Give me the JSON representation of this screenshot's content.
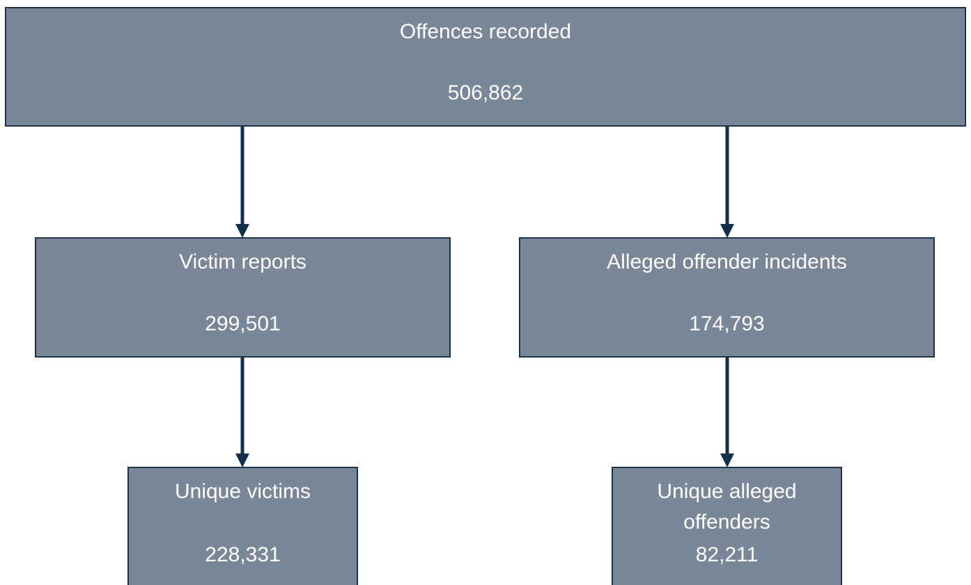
{
  "nodes": [
    {
      "label": "Offences recorded",
      "value": "506,862"
    },
    {
      "label": "Victim reports",
      "value": "299,501"
    },
    {
      "label": "Alleged offender incidents",
      "value": "174,793"
    },
    {
      "label": "Unique victims",
      "value": "228,331"
    },
    {
      "label": "Unique alleged offenders",
      "value": "82,211"
    }
  ]
}
